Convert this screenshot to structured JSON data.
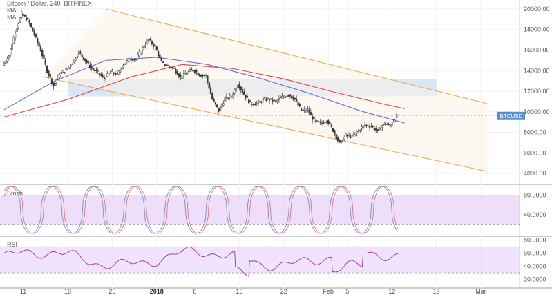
{
  "header": {
    "title": "Bitcoin / Dollar, 240, BITFINEX",
    "ma1": "MA",
    "ma2": "MA"
  },
  "price_tag": "BTCUSD",
  "colors": {
    "up": "#ffffff",
    "down": "#3a3a3a",
    "ma_fast": "#5b6ed9",
    "ma_slow": "#e04848",
    "channel": "#f4a340",
    "zone": "#bcd4ee",
    "osc_band": "#e3c8f7",
    "stoch_k": "#6f8fd8",
    "stoch_d": "#e57373",
    "rsi": "#9c27b0",
    "price_tag": "#5a8fd6"
  },
  "chart_data": [
    {
      "type": "candlestick",
      "panel": "price",
      "x_ticks": [
        "11",
        "18",
        "25",
        "2018",
        "8",
        "15",
        "22",
        "Feb",
        "5",
        "12",
        "19",
        "Mar"
      ],
      "y_ticks": [
        "20000.00",
        "18000.00",
        "16000.00",
        "14000.00",
        "12000.00",
        "10000.00",
        "8000.00",
        "6000.00",
        "4000.00"
      ],
      "ylim": [
        3000,
        20600
      ],
      "price_path": [
        {
          "d": "11",
          "close": 14500
        },
        {
          "d": "13",
          "close": 15500
        },
        {
          "d": "15",
          "close": 17800
        },
        {
          "d": "17",
          "close": 19500
        },
        {
          "d": "18",
          "close": 18900
        },
        {
          "d": "19",
          "close": 17500
        },
        {
          "d": "20",
          "close": 16000
        },
        {
          "d": "21",
          "close": 14000
        },
        {
          "d": "22",
          "close": 12500
        },
        {
          "d": "23",
          "close": 13700
        },
        {
          "d": "24",
          "close": 14100
        },
        {
          "d": "25",
          "close": 14800
        },
        {
          "d": "26",
          "close": 15800
        },
        {
          "d": "27",
          "close": 15000
        },
        {
          "d": "28",
          "close": 14200
        },
        {
          "d": "29",
          "close": 13800
        },
        {
          "d": "30",
          "close": 13200
        },
        {
          "d": "31",
          "close": 13900
        },
        {
          "d": "Jan1",
          "close": 13600
        },
        {
          "d": "Jan2",
          "close": 14600
        },
        {
          "d": "Jan3",
          "close": 15200
        },
        {
          "d": "Jan4",
          "close": 15100
        },
        {
          "d": "Jan5",
          "close": 16200
        },
        {
          "d": "Jan6",
          "close": 17000
        },
        {
          "d": "Jan7",
          "close": 16300
        },
        {
          "d": "Jan8",
          "close": 14800
        },
        {
          "d": "Jan9",
          "close": 14400
        },
        {
          "d": "Jan10",
          "close": 14200
        },
        {
          "d": "Jan11",
          "close": 13300
        },
        {
          "d": "Jan12",
          "close": 13800
        },
        {
          "d": "Jan13",
          "close": 14100
        },
        {
          "d": "Jan14",
          "close": 13600
        },
        {
          "d": "Jan15",
          "close": 13500
        },
        {
          "d": "Jan16",
          "close": 11200
        },
        {
          "d": "Jan17",
          "close": 10100
        },
        {
          "d": "Jan18",
          "close": 11300
        },
        {
          "d": "Jan19",
          "close": 11500
        },
        {
          "d": "Jan20",
          "close": 12700
        },
        {
          "d": "Jan21",
          "close": 11700
        },
        {
          "d": "Jan22",
          "close": 10800
        },
        {
          "d": "Jan23",
          "close": 10800
        },
        {
          "d": "Jan24",
          "close": 11200
        },
        {
          "d": "Jan25",
          "close": 11200
        },
        {
          "d": "Jan26",
          "close": 11000
        },
        {
          "d": "Jan27",
          "close": 11400
        },
        {
          "d": "Jan28",
          "close": 11700
        },
        {
          "d": "Jan29",
          "close": 11200
        },
        {
          "d": "Jan30",
          "close": 10100
        },
        {
          "d": "Jan31",
          "close": 10200
        },
        {
          "d": "Feb1",
          "close": 9100
        },
        {
          "d": "Feb2",
          "close": 8900
        },
        {
          "d": "Feb3",
          "close": 9200
        },
        {
          "d": "Feb4",
          "close": 8200
        },
        {
          "d": "Feb5",
          "close": 6900
        },
        {
          "d": "Feb6",
          "close": 7700
        },
        {
          "d": "Feb7",
          "close": 7600
        },
        {
          "d": "Feb8",
          "close": 8200
        },
        {
          "d": "Feb9",
          "close": 8700
        },
        {
          "d": "Feb10",
          "close": 8600
        },
        {
          "d": "Feb11",
          "close": 8100
        },
        {
          "d": "Feb12",
          "close": 8900
        },
        {
          "d": "Feb13",
          "close": 8600
        },
        {
          "d": "Feb14",
          "close": 9600
        }
      ],
      "ma_fast_path": [
        {
          "i": 0,
          "v": 10200
        },
        {
          "i": 8,
          "v": 13000
        },
        {
          "i": 16,
          "v": 15000
        },
        {
          "i": 24,
          "v": 15300
        },
        {
          "i": 32,
          "v": 14600
        },
        {
          "i": 40,
          "v": 13300
        },
        {
          "i": 48,
          "v": 11800
        },
        {
          "i": 56,
          "v": 10100
        },
        {
          "i": 63,
          "v": 8900
        }
      ],
      "ma_slow_path": [
        {
          "i": 0,
          "v": 9500
        },
        {
          "i": 10,
          "v": 11200
        },
        {
          "i": 20,
          "v": 13400
        },
        {
          "i": 28,
          "v": 14600
        },
        {
          "i": 36,
          "v": 14200
        },
        {
          "i": 44,
          "v": 13200
        },
        {
          "i": 52,
          "v": 11900
        },
        {
          "i": 60,
          "v": 10700
        },
        {
          "i": 63,
          "v": 10300
        }
      ],
      "channel_upper": [
        {
          "i": 16,
          "v": 20000
        },
        {
          "i": 76,
          "v": 10800
        }
      ],
      "channel_lower": [
        {
          "i": 6,
          "v": 13400
        },
        {
          "i": 76,
          "v": 4200
        }
      ],
      "zone": {
        "from_i": 10,
        "to_i": 68,
        "low": 11500,
        "high": 13200
      }
    },
    {
      "type": "line",
      "panel": "stoch",
      "title": "Stoch",
      "y_ticks": [
        "80.0000",
        "40.0000"
      ],
      "ylim": [
        0,
        100
      ],
      "band": [
        20,
        80
      ]
    },
    {
      "type": "line",
      "panel": "rsi",
      "title": "RSI",
      "y_ticks": [
        "80.0000",
        "60.0000",
        "40.0000",
        "20.0000"
      ],
      "ylim": [
        10,
        85
      ],
      "band": [
        30,
        70
      ]
    }
  ]
}
